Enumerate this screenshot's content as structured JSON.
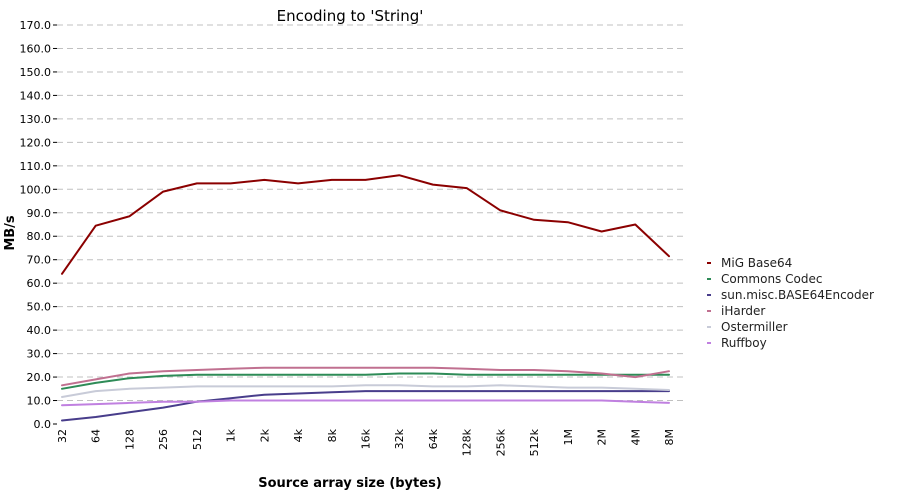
{
  "chart_data": {
    "type": "line",
    "title": "Encoding to 'String'",
    "xlabel": "Source array size (bytes)",
    "ylabel": "MB/s",
    "ylim": [
      0,
      170
    ],
    "y_ticks": [
      "0.0",
      "10.0",
      "20.0",
      "30.0",
      "40.0",
      "50.0",
      "60.0",
      "70.0",
      "80.0",
      "90.0",
      "100.0",
      "110.0",
      "120.0",
      "130.0",
      "140.0",
      "150.0",
      "160.0",
      "170.0"
    ],
    "categories": [
      "32",
      "64",
      "128",
      "256",
      "512",
      "1k",
      "2k",
      "4k",
      "8k",
      "16k",
      "32k",
      "64k",
      "128k",
      "256k",
      "512k",
      "1M",
      "2M",
      "4M",
      "8M"
    ],
    "legend_position": "right",
    "series": [
      {
        "name": "MiG Base64",
        "color": "#8b0000",
        "values": [
          64,
          84.5,
          88.5,
          99,
          102.5,
          102.5,
          104,
          102.5,
          104,
          104,
          106,
          102,
          100.5,
          91,
          87,
          86,
          82,
          85,
          71.5
        ]
      },
      {
        "name": "Commons Codec",
        "color": "#2e8b57",
        "values": [
          15,
          17.5,
          19.5,
          20.5,
          21,
          21,
          21,
          21,
          21,
          21,
          21.5,
          21.5,
          21,
          21,
          21,
          21,
          21,
          21,
          21
        ]
      },
      {
        "name": "sun.misc.BASE64Encoder",
        "color": "#483d8b",
        "values": [
          1.5,
          3,
          5,
          7,
          9.5,
          11,
          12.5,
          13,
          13.5,
          14,
          14,
          14,
          14,
          14,
          14,
          14,
          14,
          14,
          14
        ]
      },
      {
        "name": "iHarder",
        "color": "#c07090",
        "values": [
          16.5,
          19,
          21.5,
          22.5,
          23,
          23.5,
          24,
          24,
          24,
          24,
          24,
          24,
          23.5,
          23,
          23,
          22.5,
          21.5,
          20,
          22.5
        ]
      },
      {
        "name": "Ostermiller",
        "color": "#c8cbd8",
        "values": [
          11.5,
          14,
          15,
          15.5,
          16,
          16,
          16,
          16,
          16,
          16.5,
          16.5,
          16,
          16,
          16.5,
          16,
          15.5,
          15.5,
          15,
          14.5
        ]
      },
      {
        "name": "Ruffboy",
        "color": "#c080e0",
        "values": [
          8,
          8.5,
          9,
          9.5,
          9.5,
          10,
          10,
          10,
          10,
          10,
          10,
          10,
          10,
          10,
          10,
          10,
          10,
          9.5,
          9
        ]
      }
    ]
  }
}
